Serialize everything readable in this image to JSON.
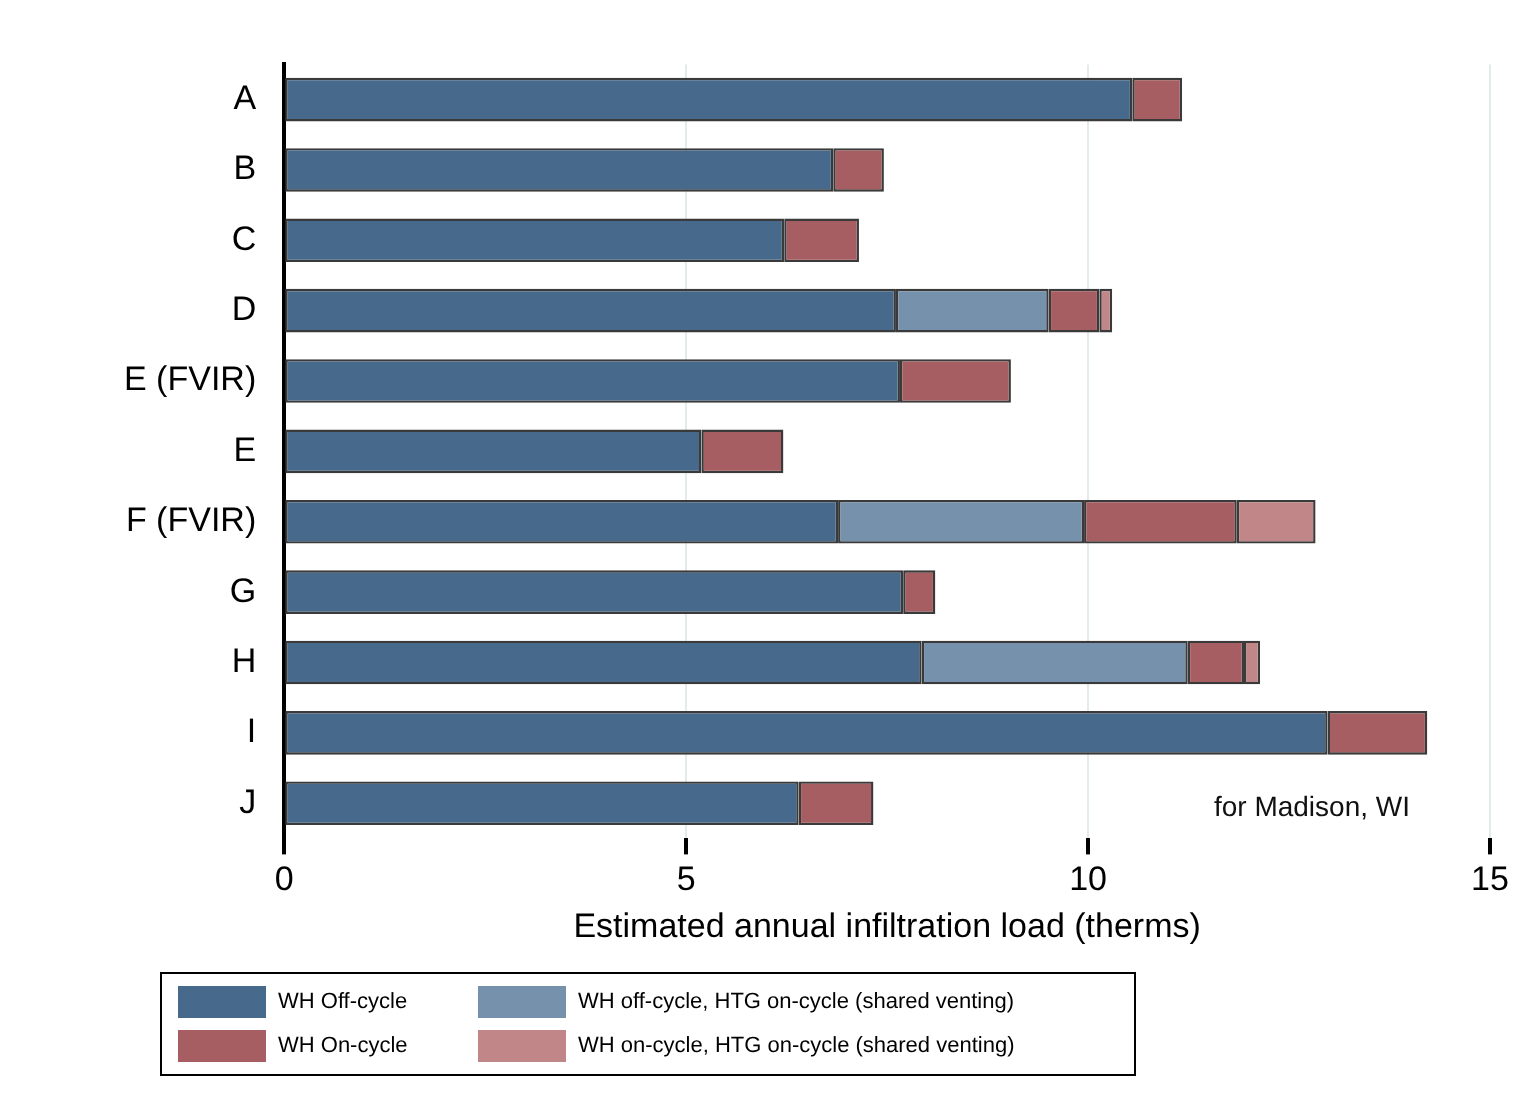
{
  "chart_data": {
    "type": "bar",
    "orientation": "horizontal",
    "stacked": true,
    "xlabel": "Estimated annual infiltration load (therms)",
    "categories": [
      "A",
      "B",
      "C",
      "D",
      "E (FVIR)",
      "E",
      "F (FVIR)",
      "G",
      "H",
      "I",
      "J"
    ],
    "series": [
      {
        "name": "WH Off-cycle",
        "color": "#476a8c",
        "values": [
          10.55,
          6.83,
          6.22,
          7.61,
          7.66,
          5.19,
          6.89,
          7.7,
          7.93,
          12.98,
          6.4
        ]
      },
      {
        "name": "WH off-cycle, HTG on-cycle (shared venting)",
        "color": "#7691ab",
        "values": [
          null,
          null,
          null,
          1.9,
          null,
          null,
          3.06,
          null,
          3.31,
          null,
          null
        ]
      },
      {
        "name": "WH On-cycle",
        "color": "#a65e62",
        "values": [
          0.62,
          0.63,
          0.93,
          0.63,
          1.38,
          1.02,
          1.9,
          0.4,
          0.7,
          1.24,
          0.93
        ]
      },
      {
        "name": "WH on-cycle, HTG on-cycle (shared venting)",
        "color": "#c08688",
        "values": [
          null,
          null,
          null,
          0.16,
          null,
          null,
          0.98,
          null,
          0.2,
          null,
          null
        ]
      }
    ],
    "xlim": [
      0,
      15
    ],
    "xticks": [
      0,
      5,
      10,
      15
    ],
    "grid": "x",
    "legend": "bottom",
    "annotations": [
      "for Madison, WI"
    ]
  }
}
